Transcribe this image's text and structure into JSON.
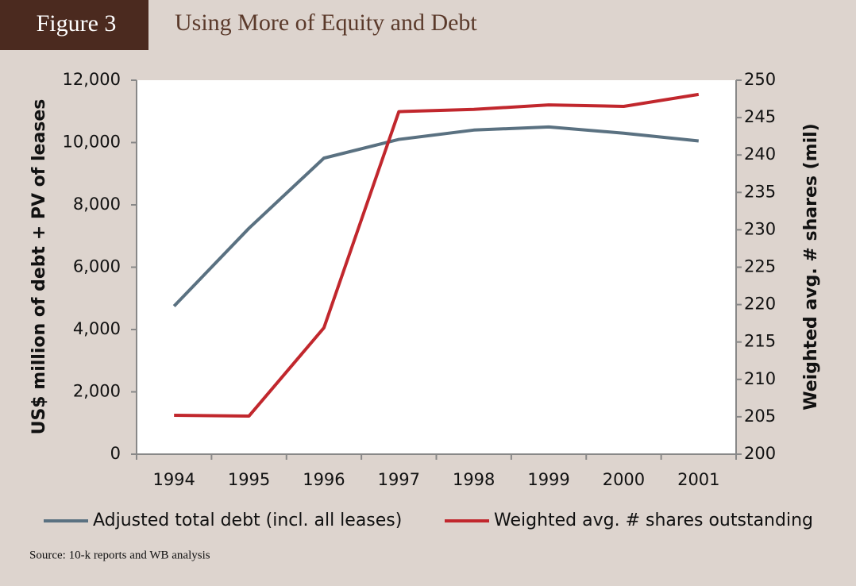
{
  "chart_data": {
    "type": "line",
    "figure_label": "Figure 3",
    "title": "Using More of Equity and Debt",
    "source": "Source: 10-k reports and WB analysis",
    "y_label": "US$ million of debt + PV of leases",
    "y2_label": "Weighted avg. # shares (mil)",
    "categories": [
      "1994",
      "1995",
      "1996",
      "1997",
      "1998",
      "1999",
      "2000",
      "2001"
    ],
    "series": [
      {
        "name": "Adjusted total debt (incl. all leases)",
        "color": "#5a7181",
        "values": [
          4750,
          7250,
          9500,
          10100,
          10400,
          10500,
          10300,
          10050
        ]
      },
      {
        "name": "Weighted avg. # shares outstanding",
        "color": "#c1272d",
        "axis": "y2",
        "values": [
          205.2,
          205.1,
          216.9,
          245.8,
          246.1,
          246.7,
          246.5,
          248.1
        ]
      }
    ],
    "ylim": [
      0,
      12000
    ],
    "yticks": [
      0,
      {
        "value": 2000,
        "label": "2,000"
      },
      {
        "value": 4000,
        "label": "4,000"
      },
      {
        "value": 6000,
        "label": "6,000"
      },
      {
        "value": 8000,
        "label": "8,000"
      },
      {
        "value": 10000,
        "label": "10,000"
      },
      {
        "value": 12000,
        "label": "12,000"
      }
    ],
    "y2lim": [
      200,
      250
    ],
    "y2ticks": [
      200,
      205,
      210,
      215,
      220,
      225,
      230,
      235,
      240,
      245,
      250
    ],
    "grid": false,
    "legend": "bottom"
  }
}
